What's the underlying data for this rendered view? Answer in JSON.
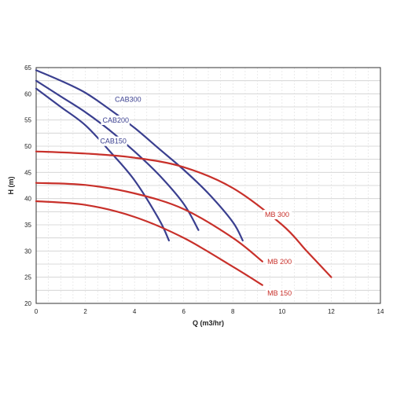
{
  "chart_data": {
    "type": "line",
    "xlabel": "Q (m3/hr)",
    "ylabel": "H (m)",
    "xlim": [
      0,
      14
    ],
    "ylim": [
      20,
      65
    ],
    "x_ticks": [
      0,
      2,
      4,
      6,
      8,
      10,
      12,
      14
    ],
    "y_ticks": [
      20,
      25,
      30,
      35,
      40,
      45,
      50,
      55,
      60,
      65
    ],
    "grid": true,
    "series": [
      {
        "name": "CAB300",
        "color": "#3a3f8f",
        "label_pos": [
          3.2,
          58.5
        ],
        "points": [
          [
            0,
            64.5
          ],
          [
            1,
            62.5
          ],
          [
            2,
            60.2
          ],
          [
            3,
            57.0
          ],
          [
            4,
            53.5
          ],
          [
            5,
            49.5
          ],
          [
            6,
            45.5
          ],
          [
            7,
            41.0
          ],
          [
            8,
            35.5
          ],
          [
            8.4,
            32.0
          ]
        ]
      },
      {
        "name": "CAB200",
        "color": "#3a3f8f",
        "label_pos": [
          2.7,
          54.5
        ],
        "points": [
          [
            0,
            62.5
          ],
          [
            1,
            59.5
          ],
          [
            2,
            56.5
          ],
          [
            3,
            53.0
          ],
          [
            4,
            49.0
          ],
          [
            5,
            44.5
          ],
          [
            6,
            39.0
          ],
          [
            6.6,
            34.0
          ]
        ]
      },
      {
        "name": "CAB150",
        "color": "#3a3f8f",
        "label_pos": [
          2.6,
          50.5
        ],
        "points": [
          [
            0,
            61.0
          ],
          [
            1,
            57.5
          ],
          [
            2,
            54.0
          ],
          [
            3,
            49.0
          ],
          [
            4,
            43.5
          ],
          [
            5,
            36.0
          ],
          [
            5.4,
            32.0
          ]
        ]
      },
      {
        "name": "MB 300",
        "color": "#c8302a",
        "label_pos": [
          9.3,
          36.5
        ],
        "points": [
          [
            0,
            49.0
          ],
          [
            2,
            48.6
          ],
          [
            4,
            47.8
          ],
          [
            6,
            46.0
          ],
          [
            8,
            42.0
          ],
          [
            10,
            35.0
          ],
          [
            11,
            30.0
          ],
          [
            12,
            25.0
          ]
        ]
      },
      {
        "name": "MB 200",
        "color": "#c8302a",
        "label_pos": [
          9.4,
          27.5
        ],
        "points": [
          [
            0,
            43.0
          ],
          [
            2,
            42.6
          ],
          [
            4,
            41.0
          ],
          [
            6,
            38.0
          ],
          [
            8,
            32.5
          ],
          [
            9.2,
            28.0
          ]
        ]
      },
      {
        "name": "MB 150",
        "color": "#c8302a",
        "label_pos": [
          9.4,
          21.5
        ],
        "points": [
          [
            0,
            39.5
          ],
          [
            2,
            38.8
          ],
          [
            4,
            36.5
          ],
          [
            6,
            32.5
          ],
          [
            8,
            27.0
          ],
          [
            9.2,
            23.5
          ]
        ]
      }
    ]
  }
}
